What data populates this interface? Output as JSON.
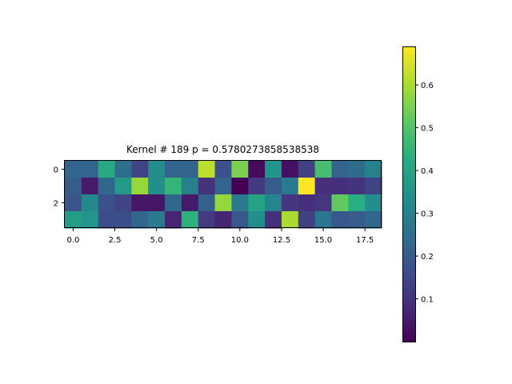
{
  "chart_data": {
    "type": "heatmap",
    "title": "Kernel # 189 p = 0.5780273858538538",
    "xlabel": "",
    "ylabel": "",
    "colormap": "viridis",
    "x_ticks": [
      "0.0",
      "2.5",
      "5.0",
      "7.5",
      "10.0",
      "12.5",
      "15.0",
      "17.5"
    ],
    "y_ticks": [
      "0",
      "2"
    ],
    "colorbar_ticks": [
      "0.1",
      "0.2",
      "0.3",
      "0.4",
      "0.5",
      "0.6"
    ],
    "vmin": 0.0,
    "vmax": 0.69,
    "values": [
      [
        0.22,
        0.22,
        0.42,
        0.25,
        0.14,
        0.33,
        0.22,
        0.22,
        0.62,
        0.17,
        0.55,
        0.02,
        0.36,
        0.03,
        0.13,
        0.48,
        0.22,
        0.24,
        0.3
      ],
      [
        0.2,
        0.05,
        0.23,
        0.37,
        0.58,
        0.34,
        0.45,
        0.3,
        0.1,
        0.22,
        0.0,
        0.12,
        0.2,
        0.28,
        0.69,
        0.09,
        0.09,
        0.1,
        0.14
      ],
      [
        0.18,
        0.32,
        0.17,
        0.14,
        0.04,
        0.04,
        0.23,
        0.05,
        0.21,
        0.58,
        0.28,
        0.4,
        0.31,
        0.11,
        0.09,
        0.11,
        0.52,
        0.43,
        0.34
      ],
      [
        0.38,
        0.36,
        0.16,
        0.16,
        0.23,
        0.28,
        0.07,
        0.44,
        0.12,
        0.07,
        0.19,
        0.34,
        0.09,
        0.6,
        0.13,
        0.27,
        0.19,
        0.2,
        0.23
      ]
    ]
  }
}
